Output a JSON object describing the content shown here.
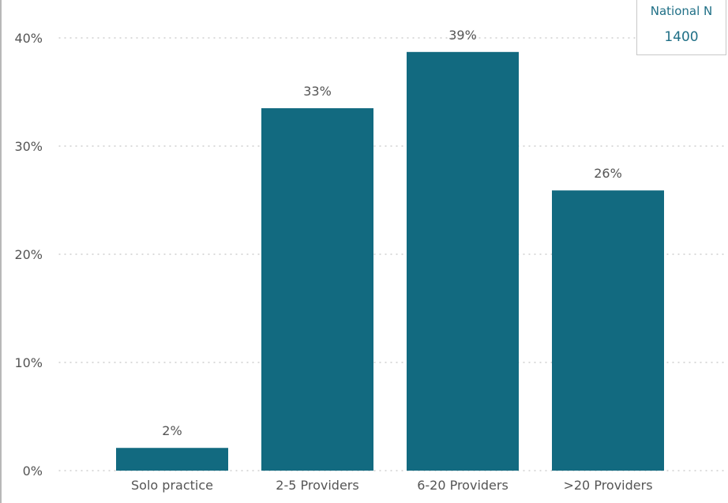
{
  "colors": {
    "bar": "#126a80",
    "grid": "#c4c4c4",
    "text": "#555555",
    "accent": "#1f6f86"
  },
  "kpi": {
    "label": "National N",
    "value": "1400"
  },
  "chart_data": {
    "type": "bar",
    "categories": [
      "Solo practice",
      "2-5 Providers",
      "6-20 Providers",
      ">20 Providers"
    ],
    "values": [
      2.1,
      33.5,
      38.7,
      25.9
    ],
    "data_labels": [
      "2%",
      "33%",
      "39%",
      "26%"
    ],
    "y_ticks": [
      0,
      10,
      20,
      30,
      40
    ],
    "y_tick_labels": [
      "0%",
      "10%",
      "20%",
      "30%",
      "40%"
    ],
    "ylim": [
      0,
      40
    ],
    "grid": true,
    "title": "",
    "xlabel": "",
    "ylabel": ""
  }
}
